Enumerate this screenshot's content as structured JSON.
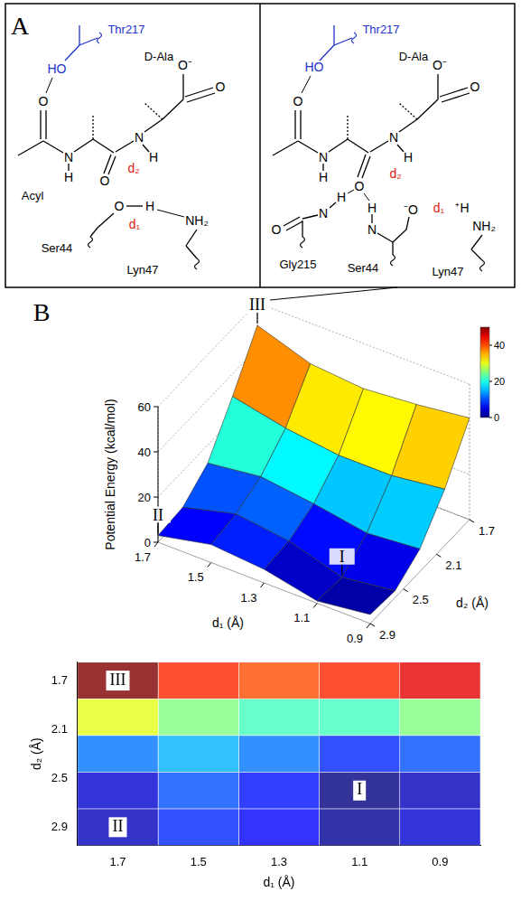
{
  "panel_a": {
    "letter": "A",
    "left": {
      "thr": "Thr217",
      "ho": "HO",
      "dala": "D-Ala",
      "o_carboxyl": "O",
      "o_minus": "O⁻",
      "o_acyl": "O",
      "n1": "N",
      "h1": "H",
      "acyl": "Acyl",
      "o_carbonyl": "O",
      "n2": "N",
      "h2": "H",
      "d2": "d₂",
      "o_ser": "O",
      "h_ser": "H",
      "d1": "d₁",
      "ser": "Ser44",
      "lyn": "Lyn47",
      "nh2": "NH₂"
    },
    "right": {
      "thr": "Thr217",
      "ho": "HO",
      "dala": "D-Ala",
      "o_carboxyl": "O",
      "o_minus": "O⁻",
      "o_acyl": "O",
      "n1": "N",
      "h1": "H",
      "n2": "N",
      "h2": "H",
      "d2": "d₂",
      "o_ox": "O",
      "o_gly": "O",
      "n_gly": "N",
      "h_gly": "H",
      "h_ser_n": "H",
      "n_ser": "N",
      "o_alk": "⁻O",
      "d1": "d₁",
      "plus_h": "⁺H",
      "nh2": "NH₂",
      "gly": "Gly215",
      "ser": "Ser44",
      "lyn": "Lyn47"
    }
  },
  "panel_b": {
    "letter": "B"
  },
  "chart_data": [
    {
      "type": "surface3d",
      "x_label": "d₁ (Å)",
      "y_label": "d₂ (Å)",
      "z_label": "Potential Energy  (kcal/mol)",
      "x": [
        0.9,
        1.1,
        1.3,
        1.5,
        1.7
      ],
      "y": [
        1.7,
        2.0,
        2.3,
        2.6,
        2.9
      ],
      "energy": [
        [
          45,
          42,
          40,
          42,
          50
        ],
        [
          25,
          22,
          22,
          25,
          30
        ],
        [
          10,
          8,
          12,
          15,
          12
        ],
        [
          3,
          0,
          7,
          10,
          4
        ],
        [
          4,
          1,
          6,
          8,
          3
        ]
      ],
      "xlim": [
        0.9,
        1.7
      ],
      "xticks": [
        0.9,
        1.1,
        1.3,
        1.5,
        1.7
      ],
      "ylim": [
        1.7,
        2.9
      ],
      "yticks": [
        1.7,
        2.1,
        2.5,
        2.9
      ],
      "zlim": [
        0,
        60
      ],
      "zticks": [
        0,
        20,
        40,
        60
      ],
      "colorbar": {
        "range": [
          0,
          50
        ],
        "ticks": [
          0,
          20,
          40
        ]
      },
      "annotations": [
        {
          "label": "I",
          "d1": 1.1,
          "d2": 2.6,
          "energy": 0
        },
        {
          "label": "II",
          "d1": 1.7,
          "d2": 2.9,
          "energy": 3
        },
        {
          "label": "III",
          "d1": 1.7,
          "d2": 1.7,
          "energy": 50
        }
      ]
    },
    {
      "type": "contour",
      "x_label": "d₁ (Å)",
      "y_label": "d₂ (Å)",
      "x": [
        0.9,
        1.1,
        1.3,
        1.5,
        1.7
      ],
      "y": [
        1.7,
        2.0,
        2.3,
        2.6,
        2.9
      ],
      "energy": [
        [
          45,
          42,
          40,
          42,
          50
        ],
        [
          25,
          22,
          22,
          25,
          30
        ],
        [
          10,
          8,
          12,
          15,
          12
        ],
        [
          3,
          0,
          7,
          10,
          4
        ],
        [
          4,
          1,
          6,
          8,
          3
        ]
      ],
      "xlim": [
        0.8,
        1.8
      ],
      "xticks": [
        0.9,
        1.1,
        1.3,
        1.5,
        1.7
      ],
      "ylim": [
        1.55,
        3.05
      ],
      "yticks": [
        1.7,
        2.1,
        2.5,
        2.9
      ],
      "annotations": [
        {
          "label": "I",
          "d1": 1.1,
          "d2": 2.6
        },
        {
          "label": "II",
          "d1": 1.7,
          "d2": 2.9
        },
        {
          "label": "III",
          "d1": 1.7,
          "d2": 1.7
        }
      ]
    }
  ]
}
